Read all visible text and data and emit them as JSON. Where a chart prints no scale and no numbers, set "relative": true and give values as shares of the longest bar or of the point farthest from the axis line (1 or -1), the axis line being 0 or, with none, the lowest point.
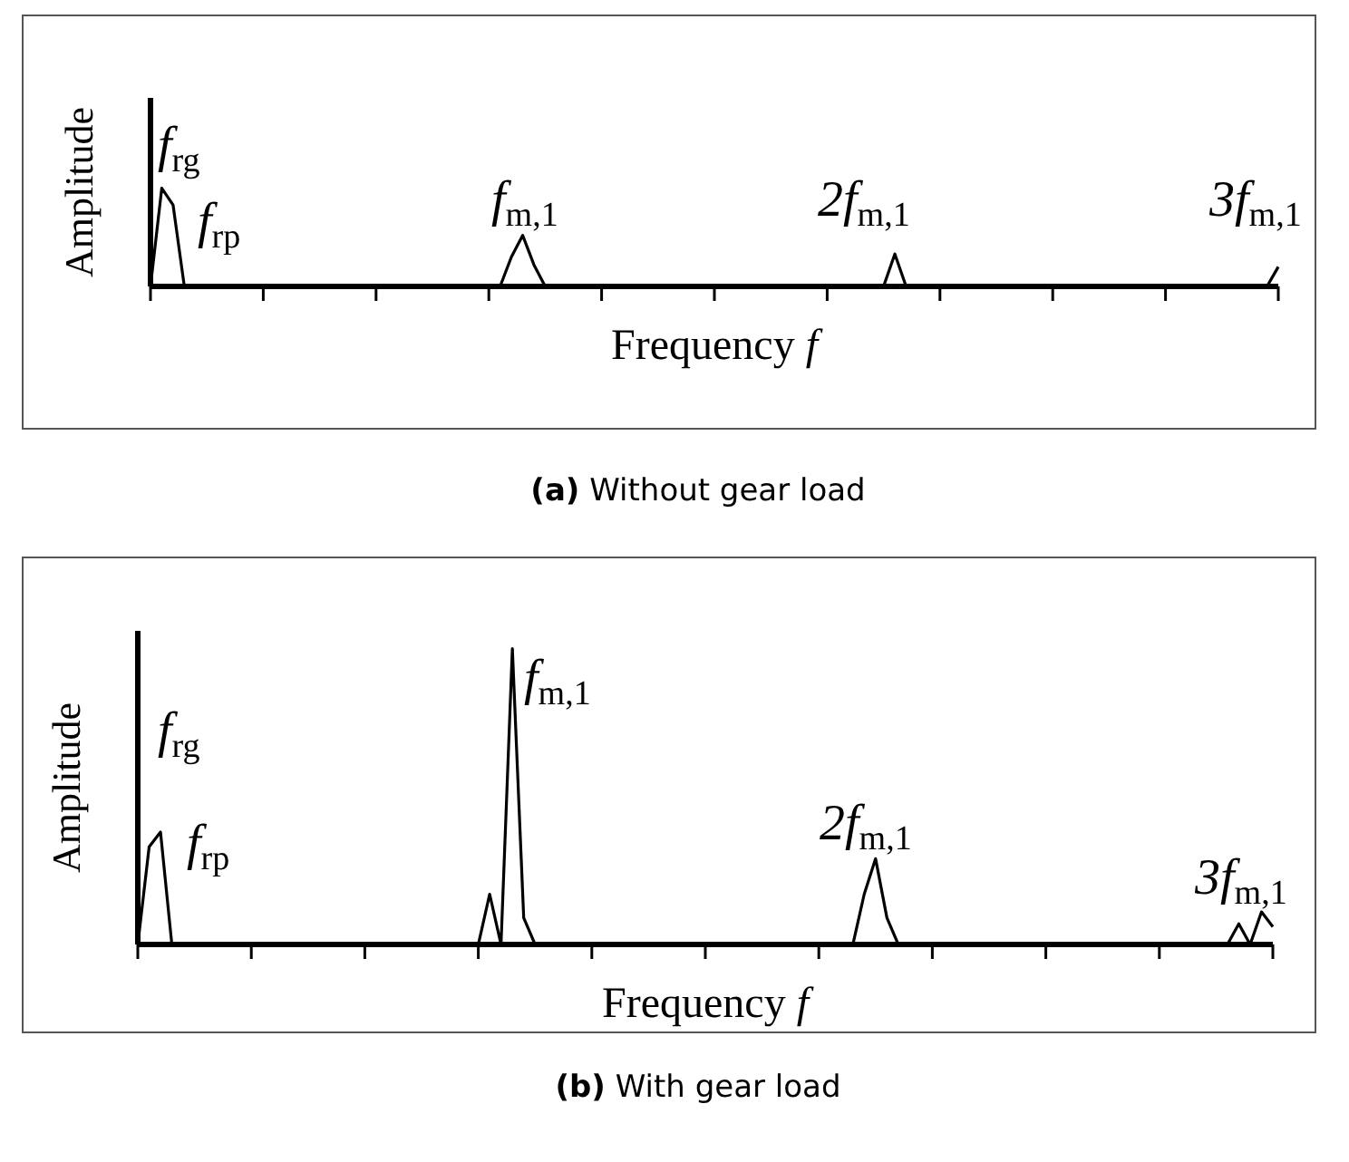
{
  "chart_data": [
    {
      "type": "line",
      "title": "(a) Without gear load",
      "xlabel": "Frequency f",
      "ylabel": "Amplitude",
      "relative": true,
      "categories": [
        null,
        null,
        null,
        null,
        null,
        null,
        null,
        null,
        null,
        null,
        null,
        null,
        null,
        null,
        null,
        null,
        null,
        null,
        null,
        null,
        null,
        null,
        null,
        null,
        null,
        null,
        null,
        null,
        null,
        null,
        null,
        null,
        null,
        null,
        null,
        null,
        null,
        null,
        null,
        null,
        null,
        null,
        null,
        null,
        null,
        null,
        null,
        null,
        null,
        null,
        null,
        null,
        null,
        null,
        null,
        null,
        null,
        null,
        null,
        null,
        null,
        null,
        null,
        null,
        null,
        null,
        null,
        null,
        null,
        null,
        null,
        null,
        null,
        null,
        null,
        null,
        null,
        null,
        null,
        null,
        null,
        null,
        null,
        null,
        null,
        null,
        null,
        null,
        null,
        null,
        null,
        null,
        null,
        null,
        null,
        null,
        null,
        null,
        null,
        null,
        null
      ],
      "series": [
        {
          "color": "#000000",
          "values": [
            0,
            1,
            0.83,
            0,
            0,
            0,
            0,
            0,
            0,
            0,
            0,
            0,
            0,
            0,
            0,
            0,
            0,
            0,
            0,
            0,
            0,
            0,
            0,
            0,
            0,
            0,
            0,
            0,
            0,
            0,
            0,
            0,
            0.3,
            0.52,
            0.22,
            0,
            0,
            0,
            0,
            0,
            0,
            0,
            0,
            0,
            0,
            0,
            0,
            0,
            0,
            0,
            0,
            0,
            0,
            0,
            0,
            0,
            0,
            0,
            0,
            0,
            0,
            0,
            0,
            0,
            0,
            0,
            0.33,
            0,
            0,
            0,
            0,
            0,
            0,
            0,
            0,
            0,
            0,
            0,
            0,
            0,
            0,
            0,
            0,
            0,
            0,
            0,
            0,
            0,
            0,
            0,
            0,
            0,
            0,
            0,
            0,
            0,
            0,
            0,
            0,
            0,
            0.2
          ]
        }
      ],
      "annotations": [
        "f$_{rg}$",
        "f$_{rp}$",
        "f$_{m,1}$",
        "2f$_{m,1}$",
        "3f$_{m,1}$"
      ]
    },
    {
      "type": "line",
      "title": "(b) With gear load",
      "xlabel": "Frequency f",
      "ylabel": "Amplitude",
      "relative": true,
      "categories": [
        null,
        null,
        null,
        null,
        null,
        null,
        null,
        null,
        null,
        null,
        null,
        null,
        null,
        null,
        null,
        null,
        null,
        null,
        null,
        null,
        null,
        null,
        null,
        null,
        null,
        null,
        null,
        null,
        null,
        null,
        null,
        null,
        null,
        null,
        null,
        null,
        null,
        null,
        null,
        null,
        null,
        null,
        null,
        null,
        null,
        null,
        null,
        null,
        null,
        null,
        null,
        null,
        null,
        null,
        null,
        null,
        null,
        null,
        null,
        null,
        null,
        null,
        null,
        null,
        null,
        null,
        null,
        null,
        null,
        null,
        null,
        null,
        null,
        null,
        null,
        null,
        null,
        null,
        null,
        null,
        null,
        null,
        null,
        null,
        null,
        null,
        null,
        null,
        null,
        null,
        null,
        null,
        null,
        null,
        null,
        null,
        null,
        null,
        null,
        null,
        null
      ],
      "series": [
        {
          "color": "#000000",
          "values": [
            0,
            0.33,
            0.38,
            0,
            0,
            0,
            0,
            0,
            0,
            0,
            0,
            0,
            0,
            0,
            0,
            0,
            0,
            0,
            0,
            0,
            0,
            0,
            0,
            0,
            0,
            0,
            0,
            0,
            0,
            0,
            0,
            0.17,
            0,
            1,
            0.09,
            0,
            0,
            0,
            0,
            0,
            0,
            0,
            0,
            0,
            0,
            0,
            0,
            0,
            0,
            0,
            0,
            0,
            0,
            0,
            0,
            0,
            0,
            0,
            0,
            0,
            0,
            0,
            0,
            0,
            0.17,
            0.29,
            0.09,
            0,
            0,
            0,
            0,
            0,
            0,
            0,
            0,
            0,
            0,
            0,
            0,
            0,
            0,
            0,
            0,
            0,
            0,
            0,
            0,
            0,
            0,
            0,
            0,
            0,
            0,
            0,
            0,
            0,
            0,
            0.07,
            0,
            0.11,
            0.06
          ]
        }
      ],
      "annotations": [
        "f$_{rg}$",
        "f$_{rp}$",
        "f$_{m,1}$",
        "2f$_{m,1}$",
        "3f$_{m,1}$"
      ]
    }
  ]
}
